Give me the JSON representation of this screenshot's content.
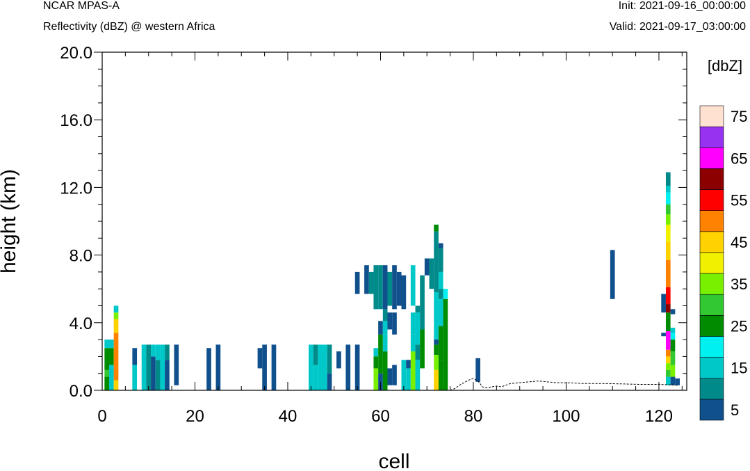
{
  "header": {
    "model": "NCAR MPAS-A",
    "field": "Reflectivity (dBZ) @ western Africa",
    "init": "Init: 2021-09-16_00:00:00",
    "valid": "Valid: 2021-09-17_03:00:00"
  },
  "chart_data": {
    "type": "heatmap",
    "xlabel": "cell",
    "ylabel": "height (km)",
    "xlim": [
      0,
      126
    ],
    "ylim": [
      0,
      20
    ],
    "x_ticks": [
      0,
      20,
      40,
      60,
      80,
      100,
      120
    ],
    "y_ticks": [
      0.0,
      4.0,
      8.0,
      12.0,
      16.0,
      20.0
    ],
    "y_tick_labels": [
      "0.0",
      "4.0",
      "8.0",
      "12.0",
      "16.0",
      "20.0"
    ],
    "colorbar": {
      "title": "[dbZ]",
      "levels": [
        5,
        10,
        15,
        20,
        25,
        30,
        35,
        40,
        45,
        50,
        55,
        60,
        65,
        70,
        75
      ],
      "labels": [
        "5",
        "15",
        "25",
        "35",
        "45",
        "55",
        "65",
        "75"
      ],
      "colors": [
        "#10508c",
        "#008a8a",
        "#00c8c8",
        "#00f0f0",
        "#008c00",
        "#32c832",
        "#78f000",
        "#f0f000",
        "#ffd200",
        "#ff8200",
        "#ff0000",
        "#8c0000",
        "#ff00ff",
        "#9632f0",
        "#ffe1d2"
      ]
    },
    "terrain": [
      [
        75,
        0
      ],
      [
        76,
        0.1
      ],
      [
        77,
        0.3
      ],
      [
        78,
        0.45
      ],
      [
        79,
        0.6
      ],
      [
        80,
        0.7
      ],
      [
        81,
        0.55
      ],
      [
        82,
        0.2
      ],
      [
        83,
        0.15
      ],
      [
        84,
        0.2
      ],
      [
        85,
        0.25
      ],
      [
        86,
        0.2
      ],
      [
        87,
        0.3
      ],
      [
        88,
        0.4
      ],
      [
        90,
        0.45
      ],
      [
        92,
        0.5
      ],
      [
        94,
        0.55
      ],
      [
        96,
        0.5
      ],
      [
        98,
        0.45
      ],
      [
        100,
        0.45
      ],
      [
        104,
        0.4
      ],
      [
        108,
        0.4
      ],
      [
        112,
        0.38
      ],
      [
        116,
        0.35
      ],
      [
        120,
        0.35
      ],
      [
        122,
        0.33
      ],
      [
        124,
        0.3
      ]
    ],
    "cells": [
      {
        "x": 1,
        "b": [
          [
            0,
            0.8,
            25
          ],
          [
            0.8,
            1.2,
            30
          ],
          [
            1.2,
            2.5,
            25
          ],
          [
            2.5,
            3.0,
            15
          ]
        ]
      },
      {
        "x": 2,
        "b": [
          [
            0,
            1.5,
            15
          ],
          [
            1.5,
            2.5,
            25
          ],
          [
            2.5,
            3.0,
            15
          ]
        ]
      },
      {
        "x": 3,
        "b": [
          [
            0,
            0.6,
            45
          ],
          [
            0.6,
            3.4,
            50
          ],
          [
            3.4,
            4.2,
            45
          ],
          [
            4.2,
            4.6,
            35
          ],
          [
            4.6,
            5.0,
            15
          ]
        ]
      },
      {
        "x": 7,
        "b": [
          [
            0,
            1.5,
            15
          ],
          [
            1.5,
            2.5,
            5
          ]
        ]
      },
      {
        "x": 9,
        "b": [
          [
            0,
            2.7,
            15
          ]
        ]
      },
      {
        "x": 10,
        "b": [
          [
            0,
            2.7,
            10
          ]
        ]
      },
      {
        "x": 11,
        "b": [
          [
            0,
            2.0,
            5
          ],
          [
            2.0,
            2.7,
            15
          ]
        ]
      },
      {
        "x": 12,
        "b": [
          [
            0,
            1.8,
            10
          ],
          [
            1.8,
            2.7,
            15
          ]
        ]
      },
      {
        "x": 13,
        "b": [
          [
            0,
            2.7,
            15
          ]
        ]
      },
      {
        "x": 14,
        "b": [
          [
            0,
            1.8,
            5
          ],
          [
            1.8,
            2.7,
            10
          ]
        ]
      },
      {
        "x": 16,
        "b": [
          [
            0.3,
            2.7,
            5
          ]
        ]
      },
      {
        "x": 23,
        "b": [
          [
            0,
            2.5,
            5
          ]
        ]
      },
      {
        "x": 25,
        "b": [
          [
            0,
            2.7,
            5
          ]
        ]
      },
      {
        "x": 34,
        "b": [
          [
            1.3,
            2.5,
            5
          ]
        ]
      },
      {
        "x": 35,
        "b": [
          [
            0,
            2.7,
            5
          ]
        ]
      },
      {
        "x": 37,
        "b": [
          [
            0,
            2.7,
            5
          ]
        ]
      },
      {
        "x": 45,
        "b": [
          [
            0,
            2.7,
            15
          ]
        ]
      },
      {
        "x": 46,
        "b": [
          [
            0,
            1.5,
            15
          ],
          [
            1.5,
            2.7,
            10
          ]
        ]
      },
      {
        "x": 47,
        "b": [
          [
            0,
            2.7,
            15
          ]
        ]
      },
      {
        "x": 48,
        "b": [
          [
            0,
            2.7,
            15
          ]
        ]
      },
      {
        "x": 49,
        "b": [
          [
            0,
            1.0,
            5
          ],
          [
            1.0,
            2.7,
            10
          ]
        ]
      },
      {
        "x": 51,
        "b": [
          [
            1.3,
            2.3,
            5
          ]
        ]
      },
      {
        "x": 53,
        "b": [
          [
            0,
            2.7,
            5
          ]
        ]
      },
      {
        "x": 55,
        "b": [
          [
            0,
            2.7,
            5
          ],
          [
            5.7,
            7.0,
            5
          ]
        ]
      },
      {
        "x": 57,
        "b": [
          [
            5.7,
            7.4,
            5
          ]
        ]
      },
      {
        "x": 58,
        "b": [
          [
            5.7,
            7.0,
            10
          ]
        ]
      },
      {
        "x": 59,
        "b": [
          [
            0,
            1.3,
            35
          ],
          [
            1.3,
            2.0,
            25
          ],
          [
            2.0,
            2.5,
            15
          ],
          [
            4.8,
            7.4,
            10
          ]
        ]
      },
      {
        "x": 60,
        "b": [
          [
            0,
            1.0,
            5
          ],
          [
            1.0,
            3.3,
            25
          ],
          [
            3.3,
            4.1,
            5
          ],
          [
            4.8,
            7.4,
            10
          ]
        ]
      },
      {
        "x": 61,
        "b": [
          [
            0,
            2.3,
            25
          ],
          [
            2.3,
            3.3,
            15
          ],
          [
            3.3,
            4.1,
            15
          ],
          [
            4.1,
            4.8,
            10
          ],
          [
            4.8,
            7.4,
            5
          ]
        ]
      },
      {
        "x": 62,
        "b": [
          [
            0.3,
            1.3,
            5
          ],
          [
            3.6,
            4.6,
            5
          ],
          [
            5.0,
            7.0,
            10
          ]
        ]
      },
      {
        "x": 63,
        "b": [
          [
            0.3,
            1.5,
            5
          ],
          [
            3.3,
            4.6,
            5
          ],
          [
            4.8,
            7.4,
            5
          ]
        ]
      },
      {
        "x": 64,
        "b": [
          [
            5.0,
            7.0,
            5
          ]
        ]
      },
      {
        "x": 65,
        "b": [
          [
            0,
            1.8,
            15
          ],
          [
            4.8,
            6.8,
            5
          ]
        ]
      },
      {
        "x": 66,
        "b": [
          [
            0,
            1.3,
            15
          ],
          [
            1.3,
            1.8,
            5
          ]
        ]
      },
      {
        "x": 67,
        "b": [
          [
            0,
            2.3,
            35
          ],
          [
            2.3,
            3.3,
            15
          ],
          [
            3.3,
            4.6,
            15
          ],
          [
            5.0,
            7.4,
            15
          ]
        ]
      },
      {
        "x": 68,
        "b": [
          [
            0,
            1.8,
            15
          ],
          [
            1.8,
            2.7,
            10
          ],
          [
            2.7,
            4.6,
            15
          ],
          [
            4.6,
            5.0,
            10
          ]
        ]
      },
      {
        "x": 69,
        "b": [
          [
            1.3,
            3.6,
            25
          ],
          [
            3.6,
            6.8,
            10
          ]
        ]
      },
      {
        "x": 70,
        "b": [
          [
            6.8,
            7.8,
            5
          ]
        ]
      },
      {
        "x": 71,
        "b": [
          [
            6.0,
            7.8,
            10
          ]
        ]
      },
      {
        "x": 72,
        "b": [
          [
            0,
            1.2,
            45
          ],
          [
            1.2,
            2.1,
            35
          ],
          [
            2.1,
            2.7,
            25
          ],
          [
            2.7,
            3.0,
            5
          ],
          [
            3.0,
            5.8,
            15
          ],
          [
            5.8,
            8.0,
            10
          ],
          [
            8.0,
            9.4,
            10
          ],
          [
            9.4,
            9.8,
            25
          ]
        ]
      },
      {
        "x": 73,
        "b": [
          [
            0,
            1.8,
            25
          ],
          [
            1.8,
            3.8,
            25
          ],
          [
            3.8,
            5.4,
            15
          ],
          [
            5.4,
            6.0,
            10
          ],
          [
            6.0,
            7.0,
            15
          ],
          [
            7.0,
            8.4,
            10
          ],
          [
            8.4,
            8.7,
            5
          ]
        ]
      },
      {
        "x": 74,
        "b": [
          [
            0,
            5.4,
            25
          ],
          [
            5.4,
            6.0,
            20
          ]
        ]
      },
      {
        "x": 81,
        "b": [
          [
            0.5,
            1.9,
            5
          ]
        ]
      },
      {
        "x": 110,
        "b": [
          [
            5.4,
            8.3,
            5
          ]
        ]
      },
      {
        "x": 121,
        "b": [
          [
            3.2,
            3.4,
            5
          ],
          [
            4.6,
            5.7,
            5
          ]
        ]
      },
      {
        "x": 122,
        "b": [
          [
            0.3,
            0.8,
            15
          ],
          [
            0.8,
            1.2,
            30
          ],
          [
            1.2,
            1.6,
            35
          ],
          [
            1.6,
            2.0,
            45
          ],
          [
            2.0,
            2.4,
            50
          ],
          [
            2.4,
            3.5,
            65
          ],
          [
            3.5,
            4.6,
            25
          ],
          [
            4.6,
            5.1,
            60
          ],
          [
            5.1,
            6.1,
            55
          ],
          [
            6.1,
            7.7,
            50
          ],
          [
            7.7,
            8.8,
            45
          ],
          [
            8.8,
            9.8,
            40
          ],
          [
            9.8,
            10.4,
            35
          ],
          [
            10.4,
            11.0,
            30
          ],
          [
            11.0,
            11.7,
            20
          ],
          [
            11.7,
            12.1,
            15
          ],
          [
            12.1,
            12.9,
            10
          ]
        ]
      },
      {
        "x": 123,
        "b": [
          [
            0.3,
            0.8,
            5
          ],
          [
            0.8,
            1.5,
            35
          ],
          [
            1.5,
            2.3,
            30
          ],
          [
            2.3,
            3.0,
            25
          ],
          [
            3.0,
            3.4,
            20
          ],
          [
            3.4,
            3.7,
            15
          ],
          [
            4.5,
            4.8,
            5
          ]
        ]
      },
      {
        "x": 124,
        "b": [
          [
            0.3,
            0.7,
            5
          ]
        ]
      }
    ]
  }
}
